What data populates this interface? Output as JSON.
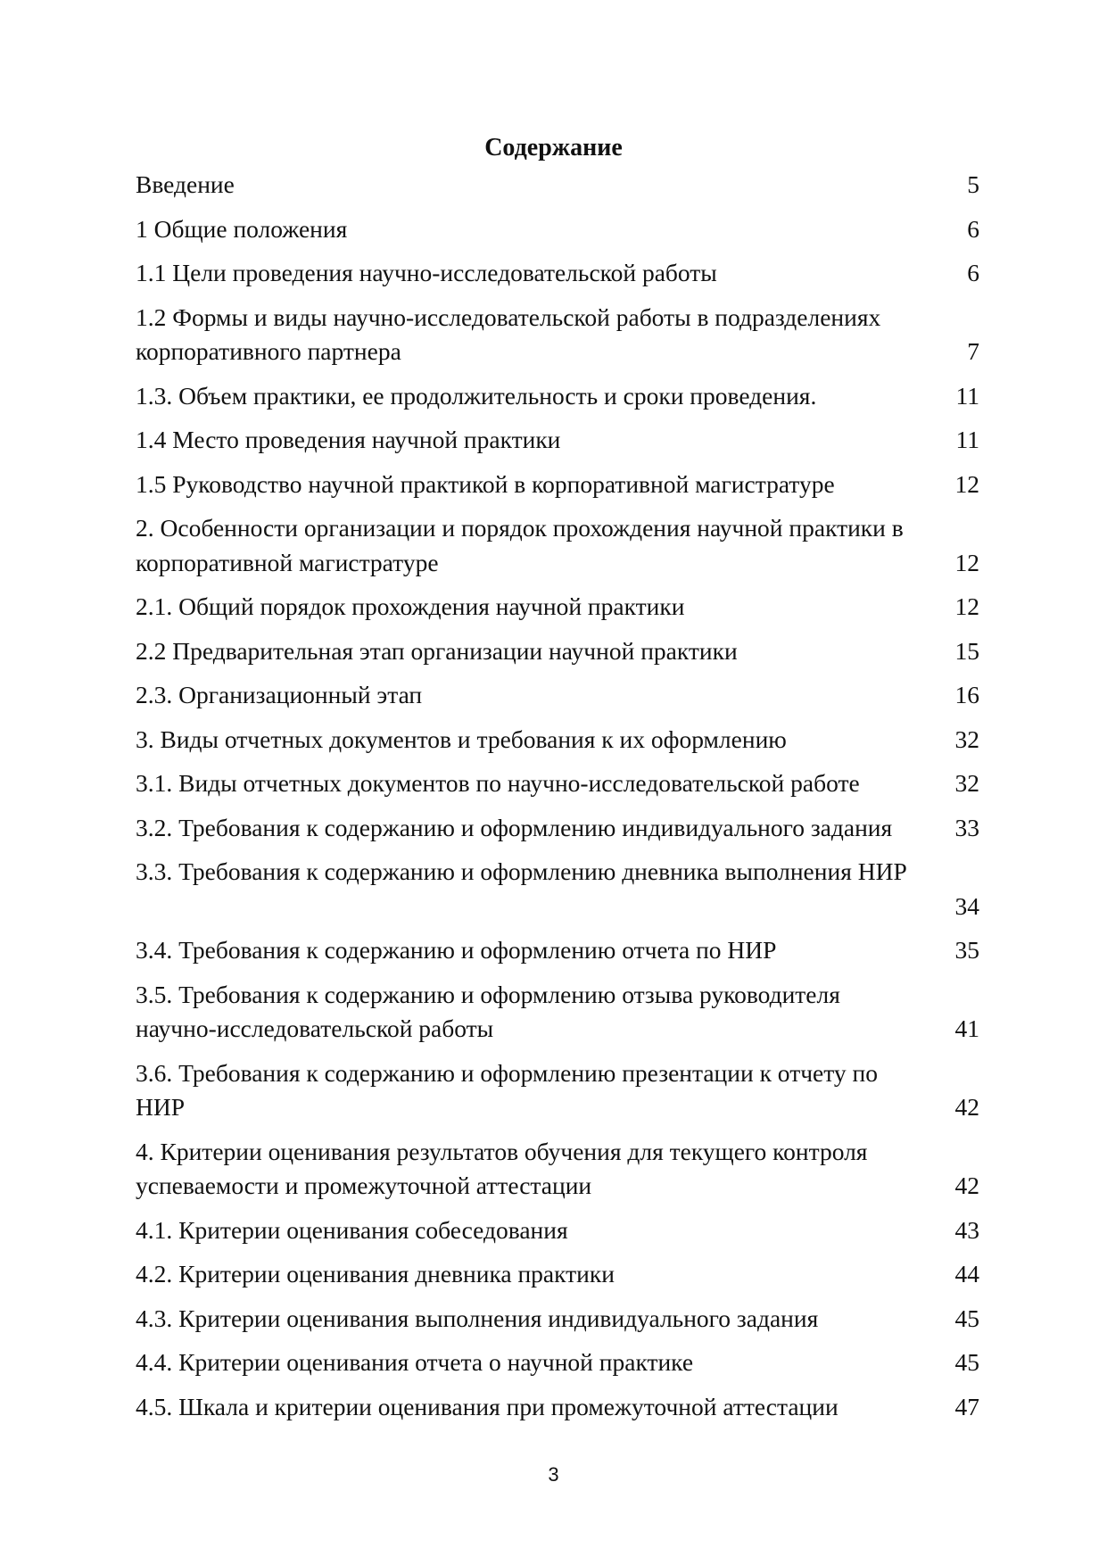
{
  "heading": "Содержание",
  "entries": [
    {
      "lines": [
        "Введение"
      ],
      "page": "5"
    },
    {
      "lines": [
        "1 Общие положения"
      ],
      "page": "6"
    },
    {
      "lines": [
        "1.1 Цели проведения научно-исследовательской работы"
      ],
      "page": "6"
    },
    {
      "lines": [
        "1.2 Формы и виды научно-исследовательской работы в подразделениях",
        "корпоративного партнера"
      ],
      "page": "7"
    },
    {
      "lines": [
        "1.3. Объем практики, ее продолжительность и сроки проведения."
      ],
      "page": "11"
    },
    {
      "lines": [
        "1.4 Место проведения научной практики"
      ],
      "page": "11"
    },
    {
      "lines": [
        "1.5 Руководство научной практикой в корпоративной магистратуре"
      ],
      "page": "12"
    },
    {
      "lines": [
        "2. Особенности организации и порядок прохождения научной практики в",
        "корпоративной магистратуре"
      ],
      "page": "12"
    },
    {
      "lines": [
        "2.1. Общий порядок прохождения научной практики"
      ],
      "page": "12"
    },
    {
      "lines": [
        "2.2 Предварительная этап организации научной практики"
      ],
      "page": "15"
    },
    {
      "lines": [
        "2.3. Организационный этап"
      ],
      "page": "16"
    },
    {
      "lines": [
        "3. Виды отчетных документов и требования к их оформлению"
      ],
      "page": "32"
    },
    {
      "lines": [
        "3.1. Виды отчетных документов по научно-исследовательской работе"
      ],
      "page": "32"
    },
    {
      "lines": [
        "3.2. Требования к содержанию и оформлению индивидуального задания"
      ],
      "page": "33"
    },
    {
      "lines": [
        "3.3. Требования к содержанию и оформлению дневника выполнения НИР"
      ],
      "page": "34"
    },
    {
      "lines": [
        "3.4. Требования к содержанию и оформлению отчета по НИР"
      ],
      "page": "35"
    },
    {
      "lines": [
        "3.5. Требования к содержанию и оформлению отзыва руководителя",
        "научно-исследовательской работы"
      ],
      "page": "41"
    },
    {
      "lines": [
        "3.6. Требования к содержанию и оформлению презентации к отчету по",
        "НИР"
      ],
      "page": "42"
    },
    {
      "lines": [
        "4. Критерии оценивания результатов обучения для текущего контроля",
        "успеваемости и промежуточной аттестации"
      ],
      "page": "42"
    },
    {
      "lines": [
        "4.1. Критерии оценивания собеседования"
      ],
      "page": "43"
    },
    {
      "lines": [
        "4.2. Критерии оценивания дневника практики"
      ],
      "page": "44"
    },
    {
      "lines": [
        "4.3. Критерии оценивания выполнения индивидуального задания"
      ],
      "page": "45"
    },
    {
      "lines": [
        "4.4. Критерии оценивания отчета о научной практике"
      ],
      "page": "45"
    },
    {
      "lines": [
        "4.5. Шкала и критерии оценивания при промежуточной аттестации"
      ],
      "page": "47"
    }
  ],
  "page_number": "3"
}
